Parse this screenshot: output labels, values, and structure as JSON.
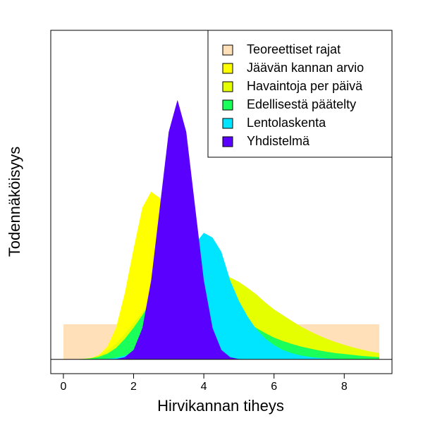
{
  "chart_data": {
    "type": "area",
    "xlabel": "Hirvikannan tiheys",
    "ylabel": "Todennäköisyys",
    "x": [
      0,
      0.25,
      0.5,
      0.75,
      1,
      1.25,
      1.5,
      1.75,
      2,
      2.25,
      2.5,
      2.75,
      3,
      3.25,
      3.5,
      3.75,
      4,
      4.25,
      4.5,
      4.75,
      5,
      5.25,
      5.5,
      5.75,
      6,
      6.25,
      6.5,
      6.75,
      7,
      7.25,
      7.5,
      7.75,
      8,
      8.25,
      8.5,
      8.75,
      9
    ],
    "series": [
      {
        "name": "Teoreettiset rajat",
        "color": "#ffe0b8",
        "values": [
          0.111,
          0.111,
          0.111,
          0.111,
          0.111,
          0.111,
          0.111,
          0.111,
          0.111,
          0.111,
          0.111,
          0.111,
          0.111,
          0.111,
          0.111,
          0.111,
          0.111,
          0.111,
          0.111,
          0.111,
          0.111,
          0.111,
          0.111,
          0.111,
          0.111,
          0.111,
          0.111,
          0.111,
          0.111,
          0.111,
          0.111,
          0.111,
          0.111,
          0.111,
          0.111,
          0.111,
          0.111
        ]
      },
      {
        "name": "Jäävän kannan arvio",
        "color": "#ffff00",
        "values": [
          0,
          0,
          0.001,
          0.003,
          0.013,
          0.04,
          0.1,
          0.21,
          0.35,
          0.48,
          0.53,
          0.51,
          0.454,
          0.375,
          0.286,
          0.202,
          0.132,
          0.08,
          0.045,
          0.023,
          0.011,
          0.005,
          0.002,
          0,
          0,
          0,
          0,
          0,
          0,
          0,
          0,
          0,
          0,
          0,
          0,
          0,
          0
        ]
      },
      {
        "name": "Havaintoja per päivä",
        "color": "#e6ff00",
        "values": [
          0,
          0,
          0.001,
          0.004,
          0.012,
          0.027,
          0.05,
          0.08,
          0.115,
          0.15,
          0.185,
          0.215,
          0.24,
          0.26,
          0.272,
          0.278,
          0.28,
          0.277,
          0.27,
          0.259,
          0.245,
          0.226,
          0.205,
          0.18,
          0.158,
          0.14,
          0.122,
          0.105,
          0.09,
          0.077,
          0.065,
          0.055,
          0.046,
          0.038,
          0.031,
          0.025,
          0.02
        ]
      },
      {
        "name": "Edellisestä päätelty",
        "color": "#1aff5a",
        "values": [
          0,
          0,
          0.001,
          0.003,
          0.008,
          0.018,
          0.036,
          0.065,
          0.1,
          0.14,
          0.185,
          0.225,
          0.255,
          0.272,
          0.275,
          0.265,
          0.245,
          0.22,
          0.193,
          0.166,
          0.14,
          0.118,
          0.099,
          0.083,
          0.069,
          0.058,
          0.049,
          0.041,
          0.035,
          0.029,
          0.024,
          0.02,
          0.017,
          0.014,
          0.011,
          0.009,
          0.007
        ]
      },
      {
        "name": "Lentolaskenta",
        "color": "#00e5ff",
        "values": [
          0,
          0,
          0,
          0,
          0.001,
          0.002,
          0.005,
          0.012,
          0.025,
          0.045,
          0.075,
          0.115,
          0.165,
          0.22,
          0.29,
          0.365,
          0.4,
          0.385,
          0.34,
          0.25,
          0.185,
          0.135,
          0.095,
          0.066,
          0.045,
          0.03,
          0.02,
          0.013,
          0.008,
          0.005,
          0.003,
          0.002,
          0.001,
          0,
          0,
          0,
          0
        ]
      },
      {
        "name": "Yhdistelmä",
        "color": "#5a00ff",
        "values": [
          0,
          0,
          0,
          0,
          0,
          0,
          0.001,
          0.007,
          0.03,
          0.099,
          0.25,
          0.484,
          0.719,
          0.82,
          0.719,
          0.484,
          0.25,
          0.099,
          0.03,
          0.007,
          0.001,
          0,
          0,
          0,
          0,
          0,
          0,
          0,
          0,
          0,
          0,
          0,
          0,
          0,
          0,
          0,
          0
        ]
      }
    ],
    "xlim": [
      -0.36,
      9.36
    ],
    "ylim": [
      -0.045,
      1.04
    ],
    "xticks": [
      0,
      2,
      4,
      6,
      8
    ],
    "legend": "topright"
  }
}
